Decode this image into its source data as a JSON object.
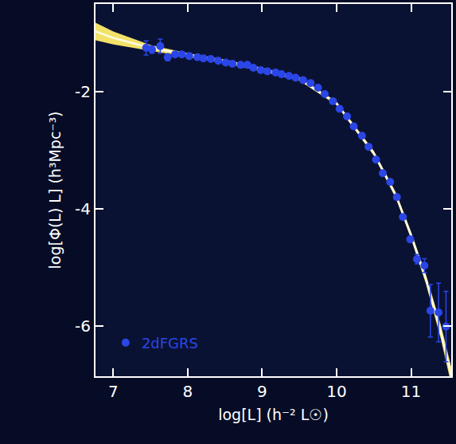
{
  "chart_data": {
    "type": "scatter",
    "x_label": "log[L] (h⁻² L☉)",
    "y_label": "log[Φ(L) L] (h³Mpc⁻³)",
    "xlim": [
      6.76,
      11.54
    ],
    "ylim": [
      -6.86,
      -0.5
    ],
    "xticks": [
      7,
      8,
      9,
      10,
      11
    ],
    "yticks": [
      -2,
      -4,
      -6
    ],
    "legend": "lower left",
    "series": [
      {
        "name": "2dFGRS",
        "color": "#2b46e6",
        "marker": "open-circle",
        "x": [
          7.44,
          7.52,
          7.63,
          7.73,
          7.83,
          7.92,
          8.02,
          8.13,
          8.21,
          8.31,
          8.41,
          8.51,
          8.6,
          8.71,
          8.8,
          8.88,
          8.98,
          9.07,
          9.18,
          9.26,
          9.36,
          9.45,
          9.55,
          9.65,
          9.75,
          9.84,
          9.95,
          10.04,
          10.14,
          10.23,
          10.34,
          10.43,
          10.53,
          10.62,
          10.72,
          10.81,
          10.89,
          10.99,
          11.08,
          11.18,
          11.26,
          11.37,
          11.47
        ],
        "values": [
          -1.25,
          -1.28,
          -1.22,
          -1.41,
          -1.36,
          -1.36,
          -1.39,
          -1.41,
          -1.43,
          -1.44,
          -1.47,
          -1.5,
          -1.52,
          -1.54,
          -1.54,
          -1.59,
          -1.63,
          -1.65,
          -1.67,
          -1.7,
          -1.73,
          -1.76,
          -1.8,
          -1.85,
          -1.93,
          -2.04,
          -2.16,
          -2.29,
          -2.42,
          -2.59,
          -2.75,
          -2.94,
          -3.16,
          -3.39,
          -3.54,
          -3.8,
          -4.14,
          -4.52,
          -4.86,
          -4.97,
          -5.74,
          -5.77,
          -6.01
        ],
        "errors": [
          0.12,
          0.06,
          0.12,
          0.06,
          0.04,
          0.03,
          0.03,
          0.03,
          0.02,
          0.02,
          0.02,
          0.02,
          0.02,
          0.02,
          0.02,
          0.02,
          0.02,
          0.02,
          0.02,
          0.02,
          0.02,
          0.02,
          0.02,
          0.02,
          0.02,
          0.02,
          0.02,
          0.02,
          0.02,
          0.02,
          0.02,
          0.02,
          0.02,
          0.02,
          0.02,
          0.03,
          0.04,
          0.05,
          0.08,
          0.12,
          0.45,
          0.5,
          0.6
        ]
      },
      {
        "type": "band",
        "color": "#f2e26a",
        "x": [
          6.76,
          7.0,
          7.5,
          8.0,
          8.5,
          9.0,
          9.5,
          10.0,
          10.5,
          10.8,
          11.0,
          11.2,
          11.4,
          11.54
        ],
        "values": [
          -0.97,
          -1.08,
          -1.25,
          -1.37,
          -1.48,
          -1.62,
          -1.78,
          -2.2,
          -3.05,
          -3.78,
          -4.45,
          -5.2,
          -6.1,
          -6.85
        ],
        "lower": [
          -1.12,
          -1.19,
          -1.3,
          -1.4,
          -1.51,
          -1.65,
          -1.81,
          -2.23,
          -3.09,
          -3.83,
          -4.51,
          -5.28,
          -6.22,
          -7.0
        ],
        "upper": [
          -0.82,
          -0.97,
          -1.2,
          -1.34,
          -1.45,
          -1.59,
          -1.75,
          -2.17,
          -3.01,
          -3.73,
          -4.39,
          -5.12,
          -5.98,
          -6.7
        ]
      }
    ]
  }
}
